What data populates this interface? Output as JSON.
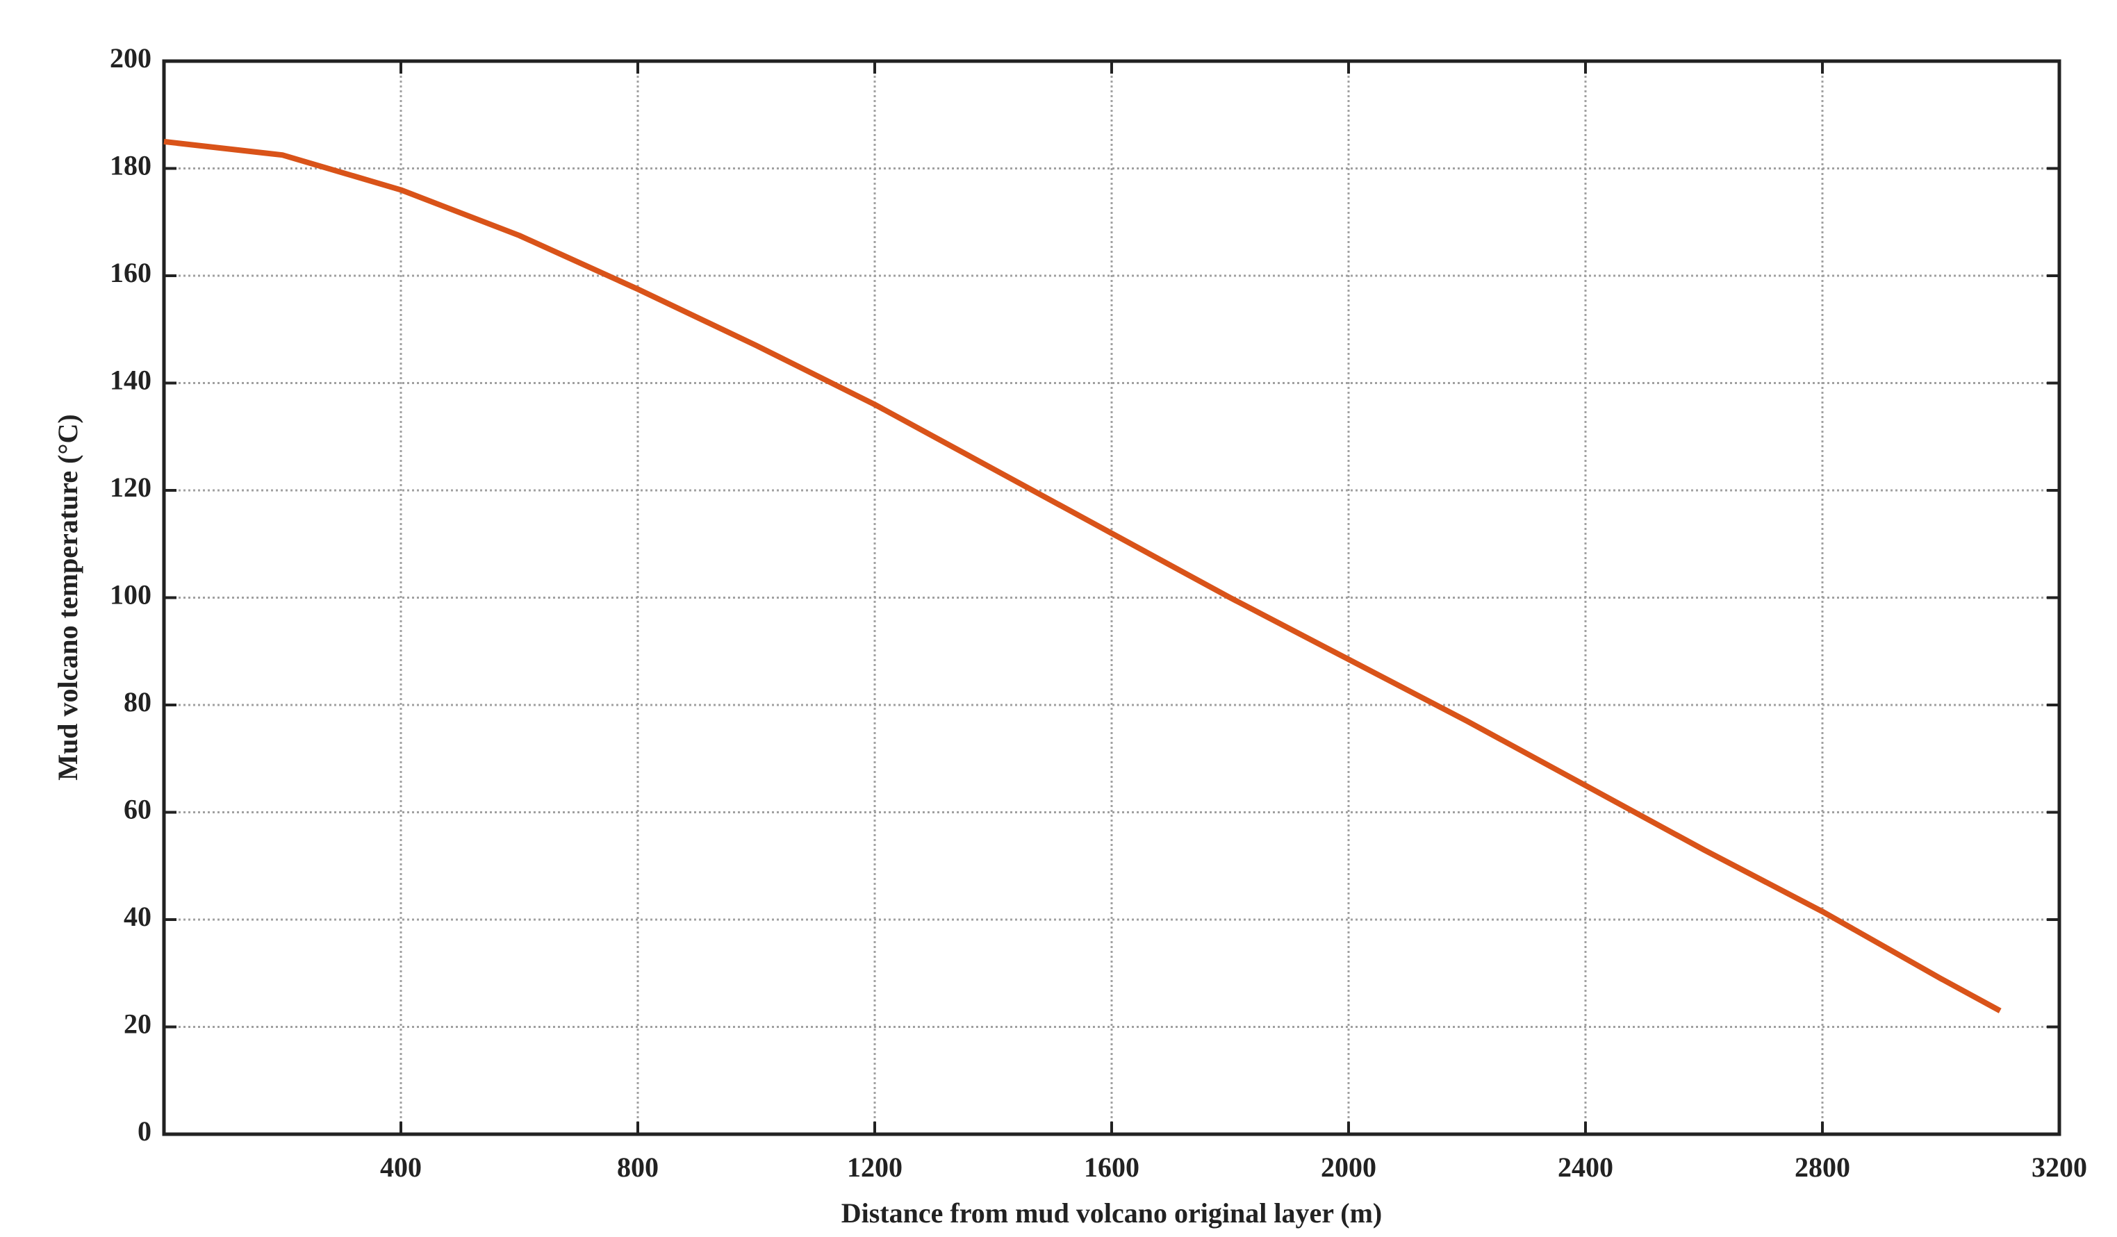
{
  "chart_data": {
    "type": "line",
    "xlabel": "Distance from mud volcano original layer (m)",
    "ylabel": "Mud volcano temperature (°C)",
    "x": [
      0,
      200,
      400,
      600,
      800,
      1000,
      1200,
      1400,
      1600,
      1800,
      2000,
      2200,
      2400,
      2600,
      2800,
      3000,
      3100
    ],
    "values": [
      185,
      182.5,
      176,
      167.5,
      157.5,
      147,
      136,
      124,
      112,
      100,
      88.5,
      77,
      65,
      53,
      41.5,
      29,
      23
    ],
    "color": "#d95319",
    "xlim": [
      0,
      3200
    ],
    "xticks": [
      400,
      800,
      1200,
      1600,
      2000,
      2400,
      2800,
      3200
    ],
    "ylim": [
      0,
      200
    ],
    "yticks": [
      0,
      20,
      40,
      60,
      80,
      100,
      120,
      140,
      160,
      180,
      200
    ],
    "grid": true
  }
}
